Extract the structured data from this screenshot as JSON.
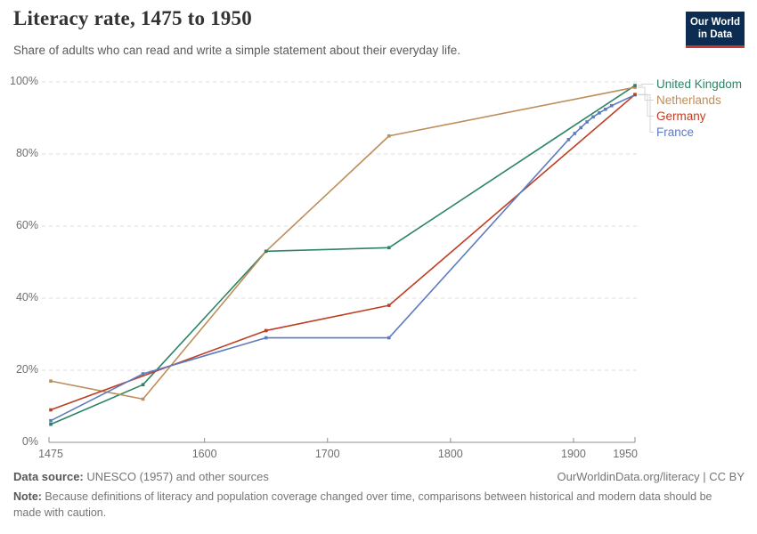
{
  "header": {
    "title": "Literacy rate, 1475 to 1950",
    "subtitle": "Share of adults who can read and write a simple statement about their everyday life."
  },
  "logo": {
    "line1": "Our World",
    "line2": "in Data"
  },
  "colors": {
    "logo_navy": "#0C2D51",
    "logo_red": "#C43A2F",
    "grid": "#DEDEDE",
    "axis": "#8F8F8F",
    "tick_text": "#6E6E6E",
    "connector": "#D5D5D5"
  },
  "chart_data": {
    "type": "line",
    "title": "Literacy rate, 1475 to 1950",
    "xlabel": "",
    "ylabel": "",
    "xlim": [
      1475,
      1950
    ],
    "ylim": [
      0,
      100
    ],
    "grid": "horizontal-dashed",
    "legend_position": "right-of-plot",
    "x_ticks": [
      1475,
      1600,
      1700,
      1800,
      1900,
      1950
    ],
    "y_tick_values": [
      0,
      20,
      40,
      60,
      80,
      100
    ],
    "y_tick_labels": [
      "0%",
      "20%",
      "40%",
      "60%",
      "80%",
      "100%"
    ],
    "series": [
      {
        "name": "United Kingdom",
        "color": "#2C8465",
        "points": [
          [
            1475,
            5
          ],
          [
            1550,
            16
          ],
          [
            1650,
            53
          ],
          [
            1750,
            54
          ],
          [
            1950,
            99
          ]
        ]
      },
      {
        "name": "Netherlands",
        "color": "#BC8E5A",
        "points": [
          [
            1475,
            17
          ],
          [
            1550,
            12
          ],
          [
            1650,
            53
          ],
          [
            1750,
            85
          ],
          [
            1950,
            98.5
          ]
        ]
      },
      {
        "name": "Germany",
        "color": "#BE3E24",
        "points": [
          [
            1475,
            9
          ],
          [
            1650,
            31
          ],
          [
            1750,
            38
          ],
          [
            1950,
            96.5
          ]
        ]
      },
      {
        "name": "France",
        "color": "#5D7CBE",
        "points": [
          [
            1475,
            6
          ],
          [
            1550,
            19
          ],
          [
            1650,
            29
          ],
          [
            1750,
            29
          ],
          [
            1896,
            84
          ],
          [
            1901,
            85.7
          ],
          [
            1906,
            87.3
          ],
          [
            1911,
            88.9
          ],
          [
            1916,
            90.3
          ],
          [
            1921,
            91.4
          ],
          [
            1926,
            92.4
          ],
          [
            1931,
            93.4
          ],
          [
            1950,
            96.4
          ]
        ]
      }
    ]
  },
  "footer": {
    "data_source_label": "Data source:",
    "data_source": " UNESCO (1957) and other sources",
    "link": "OurWorldinData.org/literacy | CC BY",
    "note_label": "Note:",
    "note": " Because definitions of literacy and population coverage changed over time, comparisons between historical and modern data should be made with caution."
  }
}
